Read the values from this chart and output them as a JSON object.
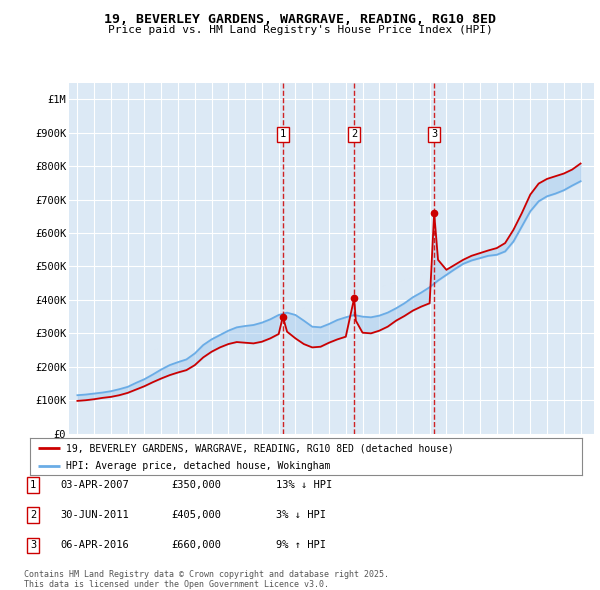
{
  "title": "19, BEVERLEY GARDENS, WARGRAVE, READING, RG10 8ED",
  "subtitle": "Price paid vs. HM Land Registry's House Price Index (HPI)",
  "ylabel_ticks": [
    "£0",
    "£100K",
    "£200K",
    "£300K",
    "£400K",
    "£500K",
    "£600K",
    "£700K",
    "£800K",
    "£900K",
    "£1M"
  ],
  "ytick_values": [
    0,
    100000,
    200000,
    300000,
    400000,
    500000,
    600000,
    700000,
    800000,
    900000,
    1000000
  ],
  "ylim": [
    0,
    1050000
  ],
  "xlim_start": 1994.5,
  "xlim_end": 2025.8,
  "background_color": "#dce9f5",
  "plot_bg": "#dce9f5",
  "grid_color": "#ffffff",
  "sale_dates_decimal": [
    2007.25,
    2011.5,
    2016.27
  ],
  "sale_prices": [
    350000,
    405000,
    660000
  ],
  "sale_labels": [
    "1",
    "2",
    "3"
  ],
  "legend_line1": "19, BEVERLEY GARDENS, WARGRAVE, READING, RG10 8ED (detached house)",
  "legend_line2": "HPI: Average price, detached house, Wokingham",
  "table_rows": [
    [
      "1",
      "03-APR-2007",
      "£350,000",
      "13% ↓ HPI"
    ],
    [
      "2",
      "30-JUN-2011",
      "£405,000",
      "3% ↓ HPI"
    ],
    [
      "3",
      "06-APR-2016",
      "£660,000",
      "9% ↑ HPI"
    ]
  ],
  "footer": "Contains HM Land Registry data © Crown copyright and database right 2025.\nThis data is licensed under the Open Government Licence v3.0.",
  "red_color": "#cc0000",
  "blue_color": "#6aace6",
  "blue_fill": "#a8ccee",
  "hpi_years": [
    1995.0,
    1995.5,
    1996.0,
    1996.5,
    1997.0,
    1997.5,
    1998.0,
    1998.5,
    1999.0,
    1999.5,
    2000.0,
    2000.5,
    2001.0,
    2001.5,
    2002.0,
    2002.5,
    2003.0,
    2003.5,
    2004.0,
    2004.5,
    2005.0,
    2005.5,
    2006.0,
    2006.5,
    2007.0,
    2007.5,
    2008.0,
    2008.5,
    2009.0,
    2009.5,
    2010.0,
    2010.5,
    2011.0,
    2011.5,
    2012.0,
    2012.5,
    2013.0,
    2013.5,
    2014.0,
    2014.5,
    2015.0,
    2015.5,
    2016.0,
    2016.5,
    2017.0,
    2017.5,
    2018.0,
    2018.5,
    2019.0,
    2019.5,
    2020.0,
    2020.5,
    2021.0,
    2021.5,
    2022.0,
    2022.5,
    2023.0,
    2023.5,
    2024.0,
    2024.5,
    2025.0
  ],
  "hpi_values": [
    115000,
    117000,
    120000,
    123000,
    127000,
    133000,
    140000,
    152000,
    163000,
    177000,
    192000,
    205000,
    214000,
    222000,
    240000,
    265000,
    282000,
    295000,
    308000,
    318000,
    322000,
    325000,
    332000,
    342000,
    355000,
    362000,
    355000,
    338000,
    320000,
    318000,
    328000,
    340000,
    348000,
    355000,
    350000,
    348000,
    353000,
    362000,
    375000,
    390000,
    408000,
    422000,
    438000,
    458000,
    475000,
    492000,
    508000,
    518000,
    525000,
    532000,
    535000,
    545000,
    575000,
    620000,
    665000,
    695000,
    710000,
    718000,
    728000,
    742000,
    755000
  ],
  "red_years": [
    1995.0,
    1995.5,
    1996.0,
    1996.5,
    1997.0,
    1997.5,
    1998.0,
    1998.5,
    1999.0,
    1999.5,
    2000.0,
    2000.5,
    2001.0,
    2001.5,
    2002.0,
    2002.5,
    2003.0,
    2003.5,
    2004.0,
    2004.5,
    2005.0,
    2005.5,
    2006.0,
    2006.5,
    2007.0,
    2007.25,
    2007.5,
    2008.0,
    2008.5,
    2009.0,
    2009.5,
    2010.0,
    2010.5,
    2011.0,
    2011.5,
    2011.6,
    2012.0,
    2012.5,
    2013.0,
    2013.5,
    2014.0,
    2014.5,
    2015.0,
    2015.5,
    2016.0,
    2016.27,
    2016.5,
    2017.0,
    2017.5,
    2018.0,
    2018.5,
    2019.0,
    2019.5,
    2020.0,
    2020.5,
    2021.0,
    2021.5,
    2022.0,
    2022.5,
    2023.0,
    2023.5,
    2024.0,
    2024.5,
    2025.0
  ],
  "red_values": [
    98000,
    100000,
    103000,
    107000,
    110000,
    115000,
    122000,
    132000,
    142000,
    154000,
    165000,
    175000,
    183000,
    190000,
    205000,
    228000,
    245000,
    258000,
    268000,
    274000,
    272000,
    270000,
    275000,
    285000,
    298000,
    350000,
    305000,
    285000,
    268000,
    258000,
    260000,
    272000,
    282000,
    290000,
    405000,
    338000,
    302000,
    300000,
    308000,
    320000,
    338000,
    352000,
    368000,
    380000,
    390000,
    660000,
    520000,
    490000,
    505000,
    520000,
    532000,
    540000,
    548000,
    555000,
    570000,
    610000,
    660000,
    715000,
    748000,
    762000,
    770000,
    778000,
    790000,
    808000
  ]
}
